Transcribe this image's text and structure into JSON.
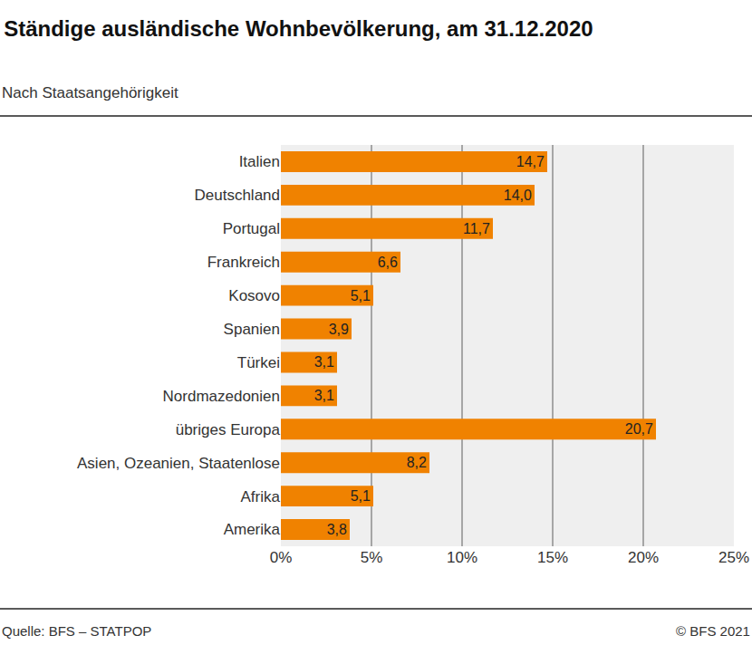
{
  "chart_data": {
    "type": "bar",
    "orientation": "horizontal",
    "title": "Ständige ausländische Wohnbevölkerung, am 31.12.2020",
    "subtitle": "Nach Staatsangehörigkeit",
    "annotations": [
      "Quelle: BFS – STATPOP",
      "© BFS 2021"
    ],
    "categories": [
      "Italien",
      "Deutschland",
      "Portugal",
      "Frankreich",
      "Kosovo",
      "Spanien",
      "Türkei",
      "Nordmazedonien",
      "übriges Europa",
      "Asien, Ozeanien, Staatenlose",
      "Afrika",
      "Amerika"
    ],
    "values": [
      14.7,
      14.0,
      11.7,
      6.6,
      5.1,
      3.9,
      3.1,
      3.1,
      20.7,
      8.2,
      5.1,
      3.8
    ],
    "value_labels": [
      "14,7",
      "14,0",
      "11,7",
      "6,6",
      "5,1",
      "3,9",
      "3,1",
      "3,1",
      "20,7",
      "8,2",
      "5,1",
      "3,8"
    ],
    "data_labels": true,
    "color": "#f08200",
    "xlim": [
      0,
      25
    ],
    "xticks": [
      {
        "value": 0,
        "label": "0%"
      },
      {
        "value": 5,
        "label": "5%"
      },
      {
        "value": 10,
        "label": "10%"
      },
      {
        "value": 15,
        "label": "15%"
      },
      {
        "value": 20,
        "label": "20%"
      },
      {
        "value": 25,
        "label": "25%"
      }
    ],
    "grid": true
  }
}
